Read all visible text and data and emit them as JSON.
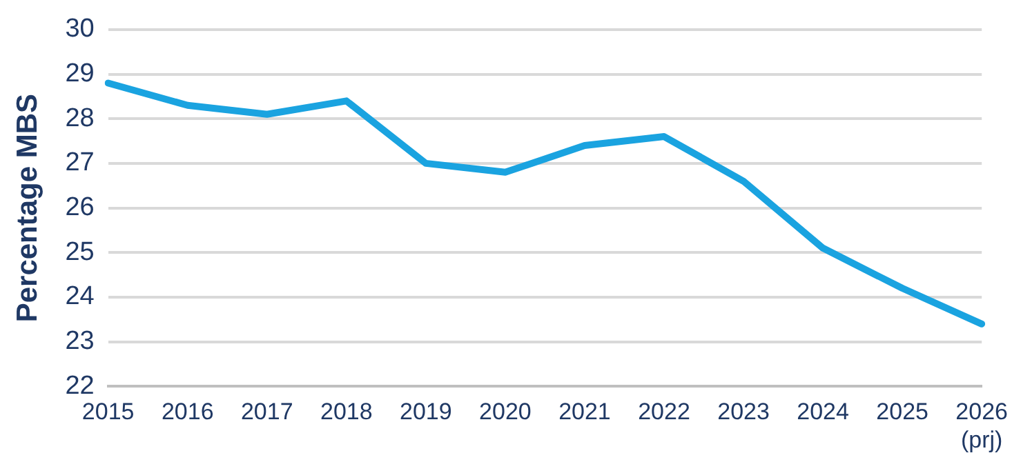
{
  "chart_data": {
    "type": "line",
    "ylabel": "Percentage MBS",
    "categories": [
      "2015",
      "2016",
      "2017",
      "2018",
      "2019",
      "2020",
      "2021",
      "2022",
      "2023",
      "2024",
      "2025",
      "2026\n(prj)"
    ],
    "series": [
      {
        "color": "#1aa3e0",
        "values": [
          28.8,
          28.3,
          28.1,
          28.4,
          27.0,
          26.8,
          27.4,
          27.6,
          26.6,
          25.1,
          24.2,
          23.4
        ]
      }
    ],
    "ylim": [
      22,
      30
    ],
    "yticks": [
      22,
      23,
      24,
      25,
      26,
      27,
      28,
      29,
      30
    ],
    "grid": "y",
    "legend": false,
    "marker": "none",
    "line_style": "solid"
  }
}
